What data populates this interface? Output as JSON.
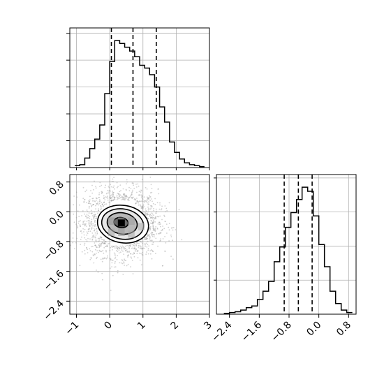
{
  "chart_data": [
    {
      "type": "histogram",
      "panel": "marginal-x",
      "xlim": [
        -1.2,
        3.0
      ],
      "x_ticks": [
        -1,
        0,
        1,
        2,
        3
      ],
      "bin_edges": [
        -1.05,
        -0.9,
        -0.75,
        -0.6,
        -0.45,
        -0.3,
        -0.15,
        0.0,
        0.15,
        0.3,
        0.45,
        0.6,
        0.75,
        0.9,
        1.05,
        1.2,
        1.35,
        1.5,
        1.65,
        1.8,
        1.95,
        2.1,
        2.25,
        2.4,
        2.55,
        2.7,
        2.85
      ],
      "counts": [
        2,
        3,
        10,
        20,
        30,
        45,
        78,
        112,
        134,
        131,
        127,
        123,
        117,
        108,
        105,
        98,
        85,
        64,
        48,
        27,
        16,
        9,
        5,
        3,
        2,
        1
      ],
      "quantiles": [
        0.05,
        0.7,
        1.4
      ],
      "quantile_style": "dashed",
      "grid": true
    },
    {
      "type": "histogram",
      "panel": "marginal-y",
      "xlim": [
        -2.75,
        1.0
      ],
      "x_ticks": [
        -2.4,
        -1.6,
        -0.8,
        0.0,
        0.8
      ],
      "x_tick_labels": [
        "−2.4",
        "−1.6",
        "−0.8",
        "0.0",
        "0.8"
      ],
      "bin_edges": [
        -2.55,
        -2.4,
        -2.25,
        -2.1,
        -1.95,
        -1.8,
        -1.65,
        -1.5,
        -1.35,
        -1.2,
        -1.05,
        -0.9,
        -0.75,
        -0.6,
        -0.45,
        -0.3,
        -0.15,
        0.0,
        0.15,
        0.3,
        0.45,
        0.6,
        0.75,
        0.9
      ],
      "counts": [
        1,
        2,
        3,
        5,
        8,
        10,
        18,
        28,
        40,
        64,
        82,
        106,
        124,
        140,
        155,
        150,
        120,
        85,
        58,
        28,
        13,
        5,
        2
      ],
      "quantiles": [
        -0.93,
        -0.55,
        -0.18
      ],
      "quantile_style": "dashed",
      "grid": true
    },
    {
      "type": "density2d",
      "panel": "joint",
      "xlim": [
        -1.2,
        3.0
      ],
      "ylim": [
        -2.75,
        1.0
      ],
      "x_ticks": [
        -1,
        0,
        1,
        2,
        3
      ],
      "x_tick_labels": [
        "−1",
        "0",
        "1",
        "2",
        "3"
      ],
      "y_ticks": [
        0.8,
        0.0,
        -0.8,
        -1.6,
        -2.4
      ],
      "y_tick_labels": [
        "0.8",
        "0.0",
        "−0.8",
        "−1.6",
        "−2.4"
      ],
      "center": [
        0.35,
        -0.3
      ],
      "sigma": [
        0.55,
        0.45
      ],
      "contour_levels": [
        "0.5σ",
        "1σ",
        "1.5σ",
        "2σ"
      ],
      "scatter": "grey points outside contours",
      "grid": true
    }
  ],
  "colors": {
    "line": "#000000",
    "grid": "#b0b0b0",
    "scatter": "#9a9a9a"
  }
}
